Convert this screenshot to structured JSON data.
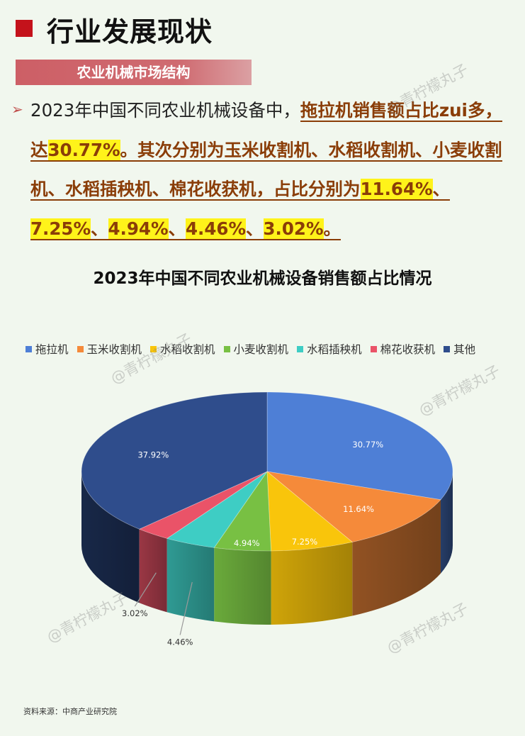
{
  "header": {
    "title": "行业发展现状",
    "section": "农业机械市场结构"
  },
  "summary": {
    "p1": "2023年中国不同农业机械设备中，",
    "p2": "拖拉机销售额占比zui多，达",
    "p3": "30.77%",
    "p4": "。其次分别为玉米收割机、水稻收割机、小麦收割机、水稻插秧机、棉花收获机，占比分别为",
    "v1": "11.64%",
    "s1": "、",
    "v2": "7.25%",
    "s2": "、",
    "v3": "4.94%",
    "s3": "、",
    "v4": "4.46%",
    "s4": "、",
    "v5": "3.02%",
    "end": "。"
  },
  "watermark": "@青柠檬丸子",
  "source": "资料来源：中商产业研究院",
  "chart_data": {
    "type": "pie",
    "title": "2023年中国不同农业机械设备销售额占比情况",
    "legend_position": "top",
    "categories": [
      "拖拉机",
      "玉米收割机",
      "水稻收割机",
      "小麦收割机",
      "水稻插秧机",
      "棉花收获机",
      "其他"
    ],
    "values": [
      30.77,
      11.64,
      7.25,
      4.94,
      4.46,
      3.02,
      37.92
    ],
    "labels": [
      "30.77%",
      "11.64%",
      "7.25%",
      "4.94%",
      "4.46%",
      "3.02%",
      "37.92%"
    ],
    "colors": [
      "#4e7fd6",
      "#f58a3a",
      "#f9c50b",
      "#78c043",
      "#3ecdc4",
      "#ea5368",
      "#2f4d8c"
    ]
  }
}
